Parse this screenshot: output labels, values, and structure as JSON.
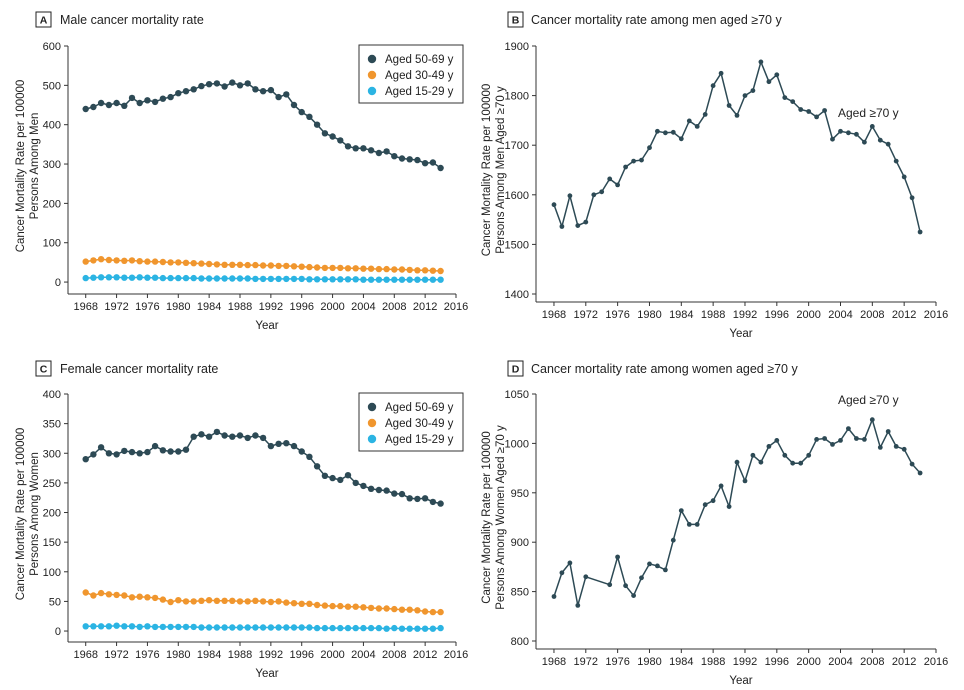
{
  "colors": {
    "dark": "#2d4a55",
    "orange": "#f0962e",
    "cyan": "#2bb4e3",
    "axis": "#333333",
    "grid": "#999999"
  },
  "chart_data": [
    {
      "id": "A",
      "type": "line",
      "title": "Male cancer mortality rate",
      "xlabel": "Year",
      "ylabel": [
        "Cancer Mortality Rate per 100000",
        "Persons Among Men"
      ],
      "xlim": [
        1967,
        2016
      ],
      "ylim": [
        -10,
        600
      ],
      "xticks": [
        1968,
        1972,
        1976,
        1980,
        1984,
        1988,
        1992,
        1996,
        2000,
        2004,
        2008,
        2012,
        2016
      ],
      "yticks": [
        0,
        100,
        200,
        300,
        400,
        500,
        600
      ],
      "legend_position": "top-right",
      "x": [
        1968,
        1969,
        1970,
        1971,
        1972,
        1973,
        1974,
        1975,
        1976,
        1977,
        1978,
        1979,
        1980,
        1981,
        1982,
        1983,
        1984,
        1985,
        1986,
        1987,
        1988,
        1989,
        1990,
        1991,
        1992,
        1993,
        1994,
        1995,
        1996,
        1997,
        1998,
        1999,
        2000,
        2001,
        2002,
        2003,
        2004,
        2005,
        2006,
        2007,
        2008,
        2009,
        2010,
        2011,
        2012,
        2013,
        2014
      ],
      "series": [
        {
          "name": "Aged 50-69 y",
          "color": "#2d4a55",
          "values": [
            440,
            445,
            455,
            450,
            455,
            448,
            468,
            455,
            462,
            458,
            466,
            470,
            480,
            485,
            490,
            498,
            503,
            505,
            497,
            507,
            500,
            505,
            490,
            485,
            488,
            470,
            477,
            450,
            432,
            420,
            400,
            378,
            370,
            360,
            345,
            340,
            340,
            335,
            328,
            332,
            320,
            314,
            312,
            310,
            302,
            304,
            290
          ]
        },
        {
          "name": "Aged 30-49 y",
          "color": "#f0962e",
          "values": [
            52,
            55,
            58,
            56,
            55,
            54,
            55,
            53,
            52,
            52,
            51,
            50,
            50,
            49,
            48,
            47,
            46,
            45,
            44,
            44,
            44,
            43,
            43,
            42,
            42,
            41,
            41,
            40,
            39,
            38,
            37,
            36,
            36,
            36,
            35,
            35,
            34,
            34,
            33,
            33,
            32,
            32,
            31,
            30,
            30,
            29,
            28
          ]
        },
        {
          "name": "Aged 15-29 y",
          "color": "#2bb4e3",
          "values": [
            10,
            11,
            12,
            12,
            12,
            11,
            11,
            12,
            11,
            11,
            10,
            10,
            10,
            10,
            10,
            9,
            9,
            9,
            9,
            9,
            9,
            9,
            8,
            8,
            8,
            8,
            8,
            8,
            8,
            7,
            7,
            7,
            7,
            7,
            7,
            7,
            6,
            6,
            6,
            6,
            6,
            6,
            6,
            6,
            6,
            6,
            6
          ]
        }
      ]
    },
    {
      "id": "B",
      "type": "line",
      "title": "Cancer mortality rate among men aged ≥70 y",
      "xlabel": "Year",
      "ylabel": [
        "Cancer Mortality Rate per 100000",
        "Persons Among Men Aged ≥70 y"
      ],
      "xlim": [
        1967,
        2016
      ],
      "ylim": [
        1400,
        1900
      ],
      "xticks": [
        1968,
        1972,
        1976,
        1980,
        1984,
        1988,
        1992,
        1996,
        2000,
        2004,
        2008,
        2012,
        2016
      ],
      "yticks": [
        1400,
        1500,
        1600,
        1700,
        1800,
        1900
      ],
      "annotation": "Aged ≥70 y",
      "x": [
        1968,
        1969,
        1970,
        1971,
        1972,
        1973,
        1974,
        1975,
        1976,
        1977,
        1978,
        1979,
        1980,
        1981,
        1982,
        1983,
        1984,
        1985,
        1986,
        1987,
        1988,
        1989,
        1990,
        1991,
        1992,
        1993,
        1994,
        1995,
        1996,
        1997,
        1998,
        1999,
        2000,
        2001,
        2002,
        2003,
        2004,
        2005,
        2006,
        2007,
        2008,
        2009,
        2010,
        2011,
        2012,
        2013,
        2014
      ],
      "series": [
        {
          "name": "Aged ≥70 y",
          "color": "#2d4a55",
          "values": [
            1580,
            1536,
            1598,
            1538,
            1545,
            1600,
            1606,
            1632,
            1620,
            1656,
            1668,
            1670,
            1695,
            1728,
            1725,
            1726,
            1713,
            1749,
            1738,
            1762,
            1820,
            1845,
            1780,
            1760,
            1800,
            1810,
            1868,
            1828,
            1842,
            1796,
            1788,
            1772,
            1768,
            1757,
            1770,
            1712,
            1728,
            1725,
            1722,
            1706,
            1738,
            1710,
            1702,
            1668,
            1636,
            1594,
            1525
          ]
        }
      ]
    },
    {
      "id": "C",
      "type": "line",
      "title": "Female cancer mortality rate",
      "xlabel": "Year",
      "ylabel": [
        "Cancer Mortality Rate per 100000",
        "Persons Among Women"
      ],
      "xlim": [
        1967,
        2016
      ],
      "ylim": [
        -5,
        400
      ],
      "xticks": [
        1968,
        1972,
        1976,
        1980,
        1984,
        1988,
        1992,
        1996,
        2000,
        2004,
        2008,
        2012,
        2016
      ],
      "yticks": [
        0,
        50,
        100,
        150,
        200,
        250,
        300,
        350,
        400
      ],
      "legend_position": "top-right",
      "x": [
        1968,
        1969,
        1970,
        1971,
        1972,
        1973,
        1974,
        1975,
        1976,
        1977,
        1978,
        1979,
        1980,
        1981,
        1982,
        1983,
        1984,
        1985,
        1986,
        1987,
        1988,
        1989,
        1990,
        1991,
        1992,
        1993,
        1994,
        1995,
        1996,
        1997,
        1998,
        1999,
        2000,
        2001,
        2002,
        2003,
        2004,
        2005,
        2006,
        2007,
        2008,
        2009,
        2010,
        2011,
        2012,
        2013,
        2014
      ],
      "series": [
        {
          "name": "Aged 50-69 y",
          "color": "#2d4a55",
          "values": [
            290,
            298,
            310,
            300,
            298,
            304,
            302,
            300,
            302,
            312,
            305,
            303,
            303,
            306,
            328,
            332,
            328,
            336,
            330,
            328,
            330,
            326,
            330,
            326,
            312,
            316,
            317,
            312,
            303,
            294,
            278,
            262,
            258,
            255,
            263,
            250,
            245,
            240,
            238,
            237,
            232,
            231,
            224,
            223,
            224,
            218,
            215
          ]
        },
        {
          "name": "Aged 30-49 y",
          "color": "#f0962e",
          "values": [
            65,
            60,
            64,
            62,
            61,
            60,
            57,
            58,
            57,
            56,
            53,
            49,
            52,
            50,
            50,
            51,
            52,
            51,
            51,
            51,
            50,
            50,
            51,
            50,
            49,
            50,
            48,
            47,
            46,
            46,
            44,
            43,
            42,
            42,
            41,
            41,
            40,
            39,
            38,
            38,
            37,
            36,
            36,
            35,
            33,
            32,
            32
          ]
        },
        {
          "name": "Aged 15-29 y",
          "color": "#2bb4e3",
          "values": [
            8,
            8,
            8,
            8,
            9,
            8,
            8,
            7,
            8,
            7,
            7,
            7,
            7,
            7,
            7,
            6,
            6,
            6,
            6,
            6,
            6,
            6,
            6,
            6,
            6,
            6,
            6,
            6,
            6,
            6,
            5,
            5,
            5,
            5,
            5,
            5,
            5,
            5,
            5,
            4,
            5,
            4,
            4,
            4,
            4,
            4,
            5
          ]
        }
      ]
    },
    {
      "id": "D",
      "type": "line",
      "title": "Cancer mortality rate among women aged ≥70 y",
      "xlabel": "Year",
      "ylabel": [
        "Cancer Mortality Rate per 100000",
        "Persons Among Women Aged ≥70 y"
      ],
      "xlim": [
        1967,
        2016
      ],
      "ylim": [
        800,
        1050
      ],
      "xticks": [
        1968,
        1972,
        1976,
        1980,
        1984,
        1988,
        1992,
        1996,
        2000,
        2004,
        2008,
        2012,
        2016
      ],
      "yticks": [
        800,
        850,
        900,
        950,
        1000,
        1050
      ],
      "annotation": "Aged ≥70 y",
      "x": [
        1968,
        1969,
        1970,
        1971,
        1972,
        1975,
        1976,
        1977,
        1978,
        1979,
        1980,
        1981,
        1982,
        1983,
        1984,
        1985,
        1986,
        1987,
        1988,
        1989,
        1990,
        1991,
        1992,
        1993,
        1994,
        1995,
        1996,
        1997,
        1998,
        1999,
        2000,
        2001,
        2002,
        2003,
        2004,
        2005,
        2006,
        2007,
        2008,
        2009,
        2010,
        2011,
        2012,
        2013,
        2014
      ],
      "series": [
        {
          "name": "Aged ≥70 y",
          "color": "#2d4a55",
          "values": [
            845,
            869,
            879,
            836,
            865,
            857,
            885,
            856,
            846,
            864,
            878,
            876,
            872,
            902,
            932,
            918,
            918,
            938,
            942,
            957,
            936,
            981,
            962,
            988,
            981,
            997,
            1003,
            988,
            980,
            980,
            988,
            1004,
            1005,
            999,
            1003,
            1015,
            1005,
            1004,
            1024,
            996,
            1012,
            997,
            994,
            979,
            970
          ]
        }
      ]
    }
  ]
}
